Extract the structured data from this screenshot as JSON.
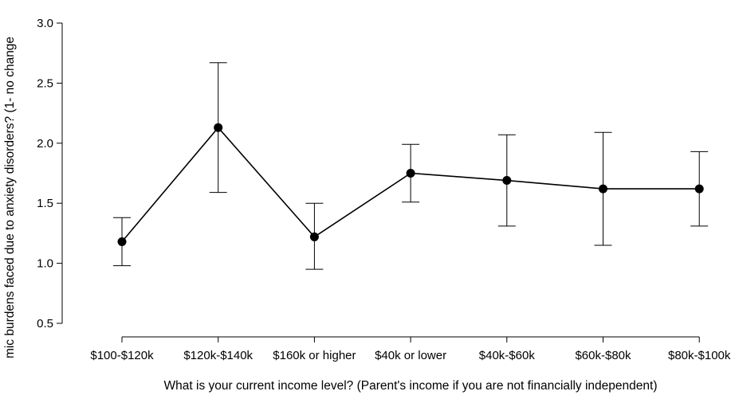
{
  "chart_data": {
    "type": "line",
    "title": "",
    "xlabel": "What is your current income level? (Parent's income if you are not financially independent)",
    "ylabel": "mic burdens faced due to anxiety disorders? (1- no change",
    "categories": [
      "$100-$120k",
      "$120k-$140k",
      "$160k or higher",
      "$40k or lower",
      "$40k-$60k",
      "$60k-$80k",
      "$80k-$100k"
    ],
    "series": [
      {
        "values": [
          1.18,
          2.13,
          1.22,
          1.75,
          1.69,
          1.62,
          1.62
        ],
        "error_low": [
          0.98,
          1.59,
          0.95,
          1.51,
          1.31,
          1.15,
          1.31
        ],
        "error_high": [
          1.38,
          2.67,
          1.5,
          1.99,
          2.07,
          2.09,
          1.93
        ]
      }
    ],
    "ylim": [
      0.5,
      3.0
    ],
    "yticks": [
      "0.5",
      "1.0",
      "1.5",
      "2.0",
      "2.5",
      "3.0"
    ],
    "grid": false,
    "legend": "none",
    "colors": {
      "line": "#000000",
      "marker": "#000000",
      "axis": "#000000"
    }
  }
}
